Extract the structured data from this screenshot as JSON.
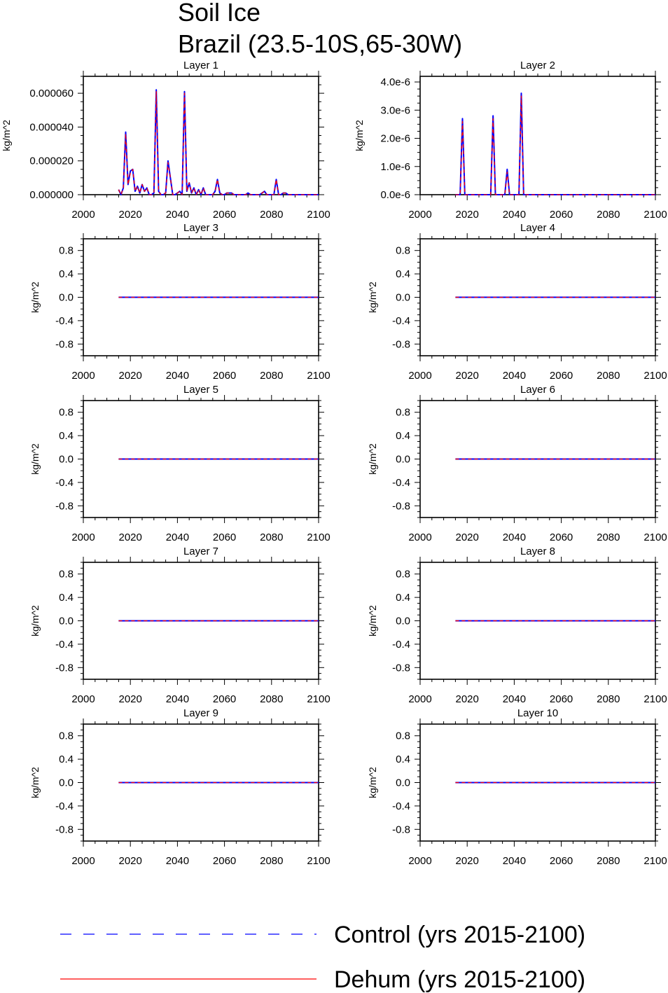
{
  "title": {
    "line1": "Soil Ice",
    "line2": "Brazil (23.5-10S,65-30W)"
  },
  "legend": {
    "items": [
      {
        "label": "Control (yrs 2015-2100)",
        "color": "#0000ff",
        "style": "dashed"
      },
      {
        "label": "Dehum (yrs 2015-2100)",
        "color": "#ff0000",
        "style": "solid"
      }
    ]
  },
  "chart_data": [
    {
      "type": "line",
      "title": "Layer 1",
      "ylabel": "kg/m^2",
      "xlim": [
        2000,
        2100
      ],
      "ylim": [
        0,
        7e-05
      ],
      "xticks": [
        2000,
        2020,
        2040,
        2060,
        2080,
        2100
      ],
      "yticks": [
        0,
        2e-05,
        4e-05,
        6e-05
      ],
      "ytick_labels": [
        "0.000000",
        "0.000020",
        "0.000040",
        "0.000060"
      ],
      "series": [
        {
          "name": "Control (yrs 2015-2100)",
          "x": [
            2015,
            2016,
            2017,
            2018,
            2019,
            2020,
            2021,
            2022,
            2023,
            2024,
            2025,
            2026,
            2027,
            2028,
            2029,
            2030,
            2031,
            2032,
            2033,
            2034,
            2035,
            2036,
            2037,
            2038,
            2039,
            2040,
            2041,
            2042,
            2043,
            2044,
            2045,
            2046,
            2047,
            2048,
            2049,
            2050,
            2051,
            2052,
            2053,
            2054,
            2055,
            2056,
            2057,
            2058,
            2059,
            2060,
            2061,
            2062,
            2063,
            2064,
            2065,
            2066,
            2067,
            2068,
            2069,
            2070,
            2071,
            2072,
            2073,
            2074,
            2075,
            2076,
            2077,
            2078,
            2079,
            2080,
            2081,
            2082,
            2083,
            2084,
            2085,
            2086,
            2087,
            2088,
            2089,
            2090,
            2091,
            2092,
            2093,
            2094,
            2095,
            2096,
            2097,
            2098,
            2099,
            2100
          ],
          "y": [
            3e-06,
            0,
            4e-06,
            3.7e-05,
            6e-06,
            1.4e-05,
            1.5e-05,
            2e-06,
            5e-06,
            1e-06,
            6e-06,
            2e-06,
            4e-06,
            0,
            0,
            1e-06,
            6.2e-05,
            2e-06,
            0,
            0,
            1e-06,
            2e-05,
            1e-05,
            0,
            0,
            1e-06,
            2e-06,
            0,
            6.1e-05,
            2e-06,
            7e-06,
            1e-06,
            4e-06,
            0,
            3e-06,
            0,
            4e-06,
            0,
            0,
            0,
            0,
            2e-06,
            9e-06,
            1e-06,
            0,
            0,
            1e-06,
            1e-06,
            1e-06,
            0,
            0,
            0,
            0,
            0,
            0,
            1e-06,
            0,
            0,
            0,
            0,
            0,
            1e-06,
            2e-06,
            0,
            0,
            0,
            0,
            9e-06,
            0,
            0,
            1e-06,
            1e-06,
            0,
            0,
            0,
            0,
            0,
            0,
            0,
            0,
            0,
            0,
            0,
            0,
            0,
            0
          ]
        },
        {
          "name": "Dehum (yrs 2015-2100)",
          "x": [
            2015,
            2016,
            2017,
            2018,
            2019,
            2020,
            2021,
            2022,
            2023,
            2024,
            2025,
            2026,
            2027,
            2028,
            2029,
            2030,
            2031,
            2032,
            2033,
            2034,
            2035,
            2036,
            2037,
            2038,
            2039,
            2040,
            2041,
            2042,
            2043,
            2044,
            2045,
            2046,
            2047,
            2048,
            2049,
            2050,
            2051,
            2052,
            2053,
            2054,
            2055,
            2056,
            2057,
            2058,
            2059,
            2060,
            2061,
            2062,
            2063,
            2064,
            2065,
            2066,
            2067,
            2068,
            2069,
            2070,
            2071,
            2072,
            2073,
            2074,
            2075,
            2076,
            2077,
            2078,
            2079,
            2080,
            2081,
            2082,
            2083,
            2084,
            2085,
            2086,
            2087,
            2088,
            2089,
            2090,
            2091,
            2092,
            2093,
            2094,
            2095,
            2096,
            2097,
            2098,
            2099,
            2100
          ],
          "y": [
            3e-06,
            0,
            4e-06,
            3.6e-05,
            6e-06,
            1.3e-05,
            1.5e-05,
            2e-06,
            5e-06,
            1e-06,
            6e-06,
            2e-06,
            4e-06,
            0,
            0,
            1e-06,
            6.1e-05,
            2e-06,
            0,
            0,
            1e-06,
            1.9e-05,
            1e-05,
            0,
            0,
            1e-06,
            2e-06,
            0,
            6e-05,
            2e-06,
            7e-06,
            1e-06,
            4e-06,
            0,
            3e-06,
            0,
            4e-06,
            0,
            0,
            0,
            0,
            2e-06,
            9e-06,
            1e-06,
            0,
            0,
            1e-06,
            1e-06,
            1e-06,
            0,
            0,
            0,
            0,
            0,
            0,
            1e-06,
            0,
            0,
            0,
            0,
            0,
            1e-06,
            2e-06,
            0,
            0,
            0,
            0,
            9e-06,
            0,
            0,
            1e-06,
            1e-06,
            0,
            0,
            0,
            0,
            0,
            0,
            0,
            0,
            0,
            0,
            0,
            0,
            0,
            0
          ]
        }
      ]
    },
    {
      "type": "line",
      "title": "Layer 2",
      "ylabel": "kg/m^2",
      "xlim": [
        2000,
        2100
      ],
      "ylim": [
        0,
        4.2e-06
      ],
      "xticks": [
        2000,
        2020,
        2040,
        2060,
        2080,
        2100
      ],
      "yticks": [
        0,
        1e-06,
        2e-06,
        3e-06,
        4e-06
      ],
      "ytick_labels": [
        "0.0e-6",
        "1.0e-6",
        "2.0e-6",
        "3.0e-6",
        "4.0e-6"
      ],
      "series": [
        {
          "name": "Control (yrs 2015-2100)",
          "x": [
            2015,
            2016,
            2017,
            2018,
            2019,
            2020,
            2029,
            2030,
            2031,
            2032,
            2033,
            2035,
            2036,
            2037,
            2038,
            2039,
            2042,
            2043,
            2044,
            2045,
            2100
          ],
          "y": [
            0,
            0,
            0,
            2.7e-06,
            0,
            0,
            0,
            0,
            2.8e-06,
            0,
            0,
            0,
            0,
            9e-07,
            0,
            0,
            0,
            3.6e-06,
            0,
            0,
            0
          ]
        },
        {
          "name": "Dehum (yrs 2015-2100)",
          "x": [
            2015,
            2016,
            2017,
            2018,
            2019,
            2020,
            2029,
            2030,
            2031,
            2032,
            2033,
            2035,
            2036,
            2037,
            2038,
            2039,
            2042,
            2043,
            2044,
            2045,
            2100
          ],
          "y": [
            0,
            0,
            0,
            2.6e-06,
            0,
            0,
            0,
            0,
            2.7e-06,
            0,
            0,
            0,
            0,
            8e-07,
            0,
            0,
            0,
            3.5e-06,
            0,
            0,
            0
          ]
        }
      ]
    },
    {
      "type": "line",
      "title": "Layer 3",
      "ylabel": "kg/m^2",
      "xlim": [
        2000,
        2100
      ],
      "ylim": [
        -1,
        1
      ],
      "xticks": [
        2000,
        2020,
        2040,
        2060,
        2080,
        2100
      ],
      "yticks": [
        -0.8,
        -0.4,
        0,
        0.4,
        0.8
      ],
      "ytick_labels": [
        "-0.8",
        "-0.4",
        "0.0",
        "0.4",
        "0.8"
      ],
      "series": [
        {
          "name": "Control (yrs 2015-2100)",
          "x": [
            2015,
            2100
          ],
          "y": [
            0,
            0
          ]
        },
        {
          "name": "Dehum (yrs 2015-2100)",
          "x": [
            2015,
            2100
          ],
          "y": [
            0,
            0
          ]
        }
      ]
    },
    {
      "type": "line",
      "title": "Layer 4",
      "ylabel": "kg/m^2",
      "xlim": [
        2000,
        2100
      ],
      "ylim": [
        -1,
        1
      ],
      "xticks": [
        2000,
        2020,
        2040,
        2060,
        2080,
        2100
      ],
      "yticks": [
        -0.8,
        -0.4,
        0,
        0.4,
        0.8
      ],
      "ytick_labels": [
        "-0.8",
        "-0.4",
        "0.0",
        "0.4",
        "0.8"
      ],
      "series": [
        {
          "name": "Control (yrs 2015-2100)",
          "x": [
            2015,
            2100
          ],
          "y": [
            0,
            0
          ]
        },
        {
          "name": "Dehum (yrs 2015-2100)",
          "x": [
            2015,
            2100
          ],
          "y": [
            0,
            0
          ]
        }
      ]
    },
    {
      "type": "line",
      "title": "Layer 5",
      "ylabel": "kg/m^2",
      "xlim": [
        2000,
        2100
      ],
      "ylim": [
        -1,
        1
      ],
      "xticks": [
        2000,
        2020,
        2040,
        2060,
        2080,
        2100
      ],
      "yticks": [
        -0.8,
        -0.4,
        0,
        0.4,
        0.8
      ],
      "ytick_labels": [
        "-0.8",
        "-0.4",
        "0.0",
        "0.4",
        "0.8"
      ],
      "series": [
        {
          "name": "Control (yrs 2015-2100)",
          "x": [
            2015,
            2100
          ],
          "y": [
            0,
            0
          ]
        },
        {
          "name": "Dehum (yrs 2015-2100)",
          "x": [
            2015,
            2100
          ],
          "y": [
            0,
            0
          ]
        }
      ]
    },
    {
      "type": "line",
      "title": "Layer 6",
      "ylabel": "kg/m^2",
      "xlim": [
        2000,
        2100
      ],
      "ylim": [
        -1,
        1
      ],
      "xticks": [
        2000,
        2020,
        2040,
        2060,
        2080,
        2100
      ],
      "yticks": [
        -0.8,
        -0.4,
        0,
        0.4,
        0.8
      ],
      "ytick_labels": [
        "-0.8",
        "-0.4",
        "0.0",
        "0.4",
        "0.8"
      ],
      "series": [
        {
          "name": "Control (yrs 2015-2100)",
          "x": [
            2015,
            2100
          ],
          "y": [
            0,
            0
          ]
        },
        {
          "name": "Dehum (yrs 2015-2100)",
          "x": [
            2015,
            2100
          ],
          "y": [
            0,
            0
          ]
        }
      ]
    },
    {
      "type": "line",
      "title": "Layer 7",
      "ylabel": "kg/m^2",
      "xlim": [
        2000,
        2100
      ],
      "ylim": [
        -1,
        1
      ],
      "xticks": [
        2000,
        2020,
        2040,
        2060,
        2080,
        2100
      ],
      "yticks": [
        -0.8,
        -0.4,
        0,
        0.4,
        0.8
      ],
      "ytick_labels": [
        "-0.8",
        "-0.4",
        "0.0",
        "0.4",
        "0.8"
      ],
      "series": [
        {
          "name": "Control (yrs 2015-2100)",
          "x": [
            2015,
            2100
          ],
          "y": [
            0,
            0
          ]
        },
        {
          "name": "Dehum (yrs 2015-2100)",
          "x": [
            2015,
            2100
          ],
          "y": [
            0,
            0
          ]
        }
      ]
    },
    {
      "type": "line",
      "title": "Layer 8",
      "ylabel": "kg/m^2",
      "xlim": [
        2000,
        2100
      ],
      "ylim": [
        -1,
        1
      ],
      "xticks": [
        2000,
        2020,
        2040,
        2060,
        2080,
        2100
      ],
      "yticks": [
        -0.8,
        -0.4,
        0,
        0.4,
        0.8
      ],
      "ytick_labels": [
        "-0.8",
        "-0.4",
        "0.0",
        "0.4",
        "0.8"
      ],
      "series": [
        {
          "name": "Control (yrs 2015-2100)",
          "x": [
            2015,
            2100
          ],
          "y": [
            0,
            0
          ]
        },
        {
          "name": "Dehum (yrs 2015-2100)",
          "x": [
            2015,
            2100
          ],
          "y": [
            0,
            0
          ]
        }
      ]
    },
    {
      "type": "line",
      "title": "Layer 9",
      "ylabel": "kg/m^2",
      "xlim": [
        2000,
        2100
      ],
      "ylim": [
        -1,
        1
      ],
      "xticks": [
        2000,
        2020,
        2040,
        2060,
        2080,
        2100
      ],
      "yticks": [
        -0.8,
        -0.4,
        0,
        0.4,
        0.8
      ],
      "ytick_labels": [
        "-0.8",
        "-0.4",
        "0.0",
        "0.4",
        "0.8"
      ],
      "series": [
        {
          "name": "Control (yrs 2015-2100)",
          "x": [
            2015,
            2100
          ],
          "y": [
            0,
            0
          ]
        },
        {
          "name": "Dehum (yrs 2015-2100)",
          "x": [
            2015,
            2100
          ],
          "y": [
            0,
            0
          ]
        }
      ]
    },
    {
      "type": "line",
      "title": "Layer 10",
      "ylabel": "kg/m^2",
      "xlim": [
        2000,
        2100
      ],
      "ylim": [
        -1,
        1
      ],
      "xticks": [
        2000,
        2020,
        2040,
        2060,
        2080,
        2100
      ],
      "yticks": [
        -0.8,
        -0.4,
        0,
        0.4,
        0.8
      ],
      "ytick_labels": [
        "-0.8",
        "-0.4",
        "0.0",
        "0.4",
        "0.8"
      ],
      "series": [
        {
          "name": "Control (yrs 2015-2100)",
          "x": [
            2015,
            2100
          ],
          "y": [
            0,
            0
          ]
        },
        {
          "name": "Dehum (yrs 2015-2100)",
          "x": [
            2015,
            2100
          ],
          "y": [
            0,
            0
          ]
        }
      ]
    }
  ]
}
